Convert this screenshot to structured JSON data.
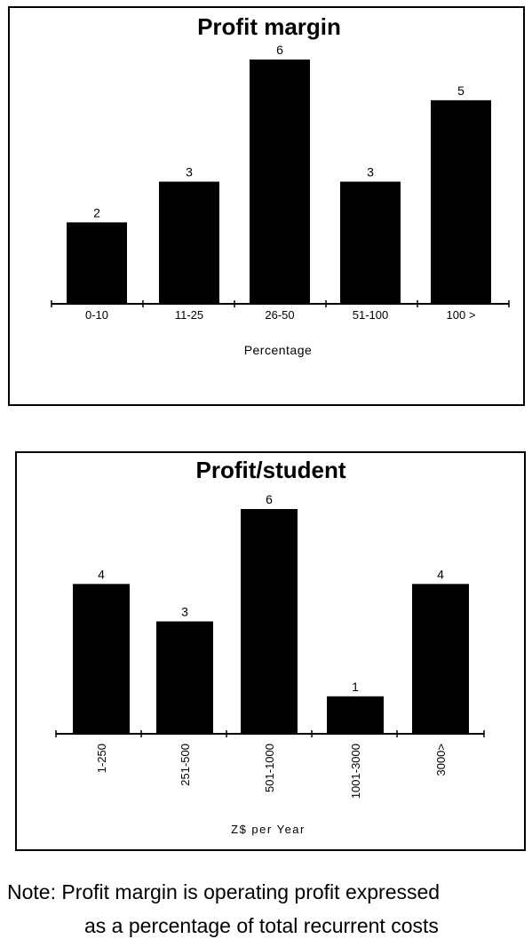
{
  "chart_data": [
    {
      "type": "bar",
      "title": "Profit margin",
      "xlabel": "Percentage",
      "ylabel": "",
      "categories": [
        "0-10",
        "11-25",
        "26-50",
        "51-100",
        "100 >"
      ],
      "values": [
        2,
        3,
        6,
        3,
        5
      ],
      "ylim": [
        0,
        6
      ],
      "tick_orientation": "horizontal",
      "bar_color": "#000000",
      "grid": false,
      "legend": "none"
    },
    {
      "type": "bar",
      "title": "Profit/student",
      "xlabel": "Z$ per Year",
      "ylabel": "",
      "categories": [
        "1-250",
        "251-500",
        "501-1000",
        "1001-3000",
        "3000>"
      ],
      "values": [
        4,
        3,
        6,
        1,
        4
      ],
      "ylim": [
        0,
        6
      ],
      "tick_orientation": "vertical",
      "bar_color": "#000000",
      "grid": false,
      "legend": "none"
    }
  ],
  "note": {
    "line1": "Note:  Profit margin is operating profit expressed",
    "line2": "as a percentage of total recurrent costs"
  }
}
